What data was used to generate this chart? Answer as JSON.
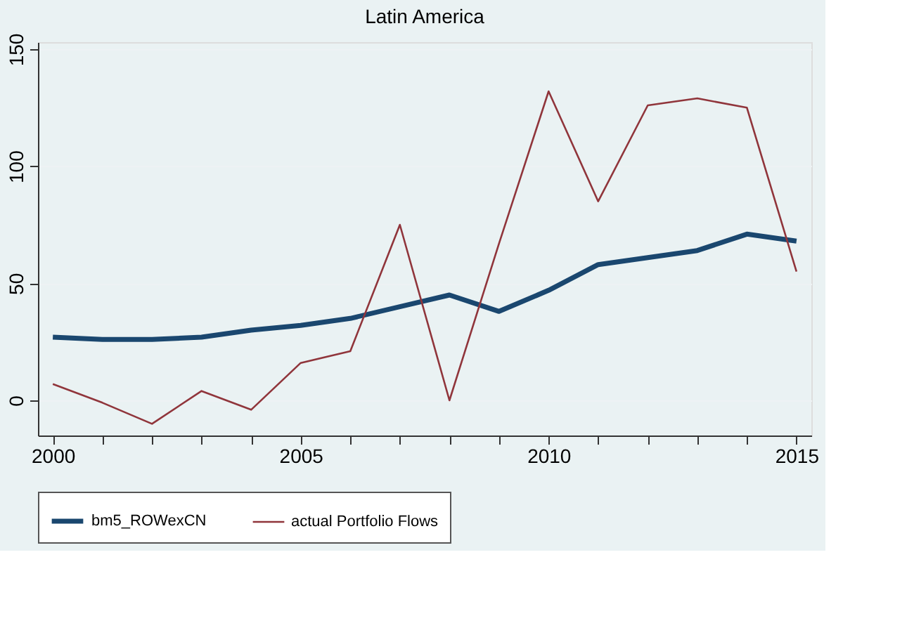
{
  "chart_data": {
    "type": "line",
    "title": "Latin America",
    "x": [
      2000,
      2001,
      2002,
      2003,
      2004,
      2005,
      2006,
      2007,
      2008,
      2009,
      2010,
      2011,
      2012,
      2013,
      2014,
      2015
    ],
    "series": [
      {
        "name": "bm5_ROWexCN",
        "color": "#1a476f",
        "values": [
          27,
          26,
          26,
          27,
          30,
          32,
          35,
          40,
          45,
          38,
          47,
          58,
          61,
          64,
          71,
          68
        ]
      },
      {
        "name": "actual Portfolio Flows",
        "color": "#90353b",
        "values": [
          7,
          -1,
          -10,
          4,
          -4,
          16,
          21,
          75,
          0,
          67,
          132,
          85,
          126,
          129,
          125,
          55
        ]
      }
    ],
    "xlim": [
      1999.7,
      2015.3
    ],
    "xticks": [
      2000,
      {
        "value": 2001,
        "label": null
      },
      {
        "value": 2002,
        "label": null
      },
      {
        "value": 2003,
        "label": null
      },
      {
        "value": 2004,
        "label": null
      },
      2005,
      {
        "value": 2006,
        "label": null
      },
      {
        "value": 2007,
        "label": null
      },
      {
        "value": 2008,
        "label": null
      },
      {
        "value": 2009,
        "label": null
      },
      2010,
      {
        "value": 2011,
        "label": null
      },
      {
        "value": 2012,
        "label": null
      },
      {
        "value": 2013,
        "label": null
      },
      {
        "value": 2014,
        "label": null
      },
      2015
    ],
    "ylim": [
      -15,
      153
    ],
    "yticks": [
      0,
      50,
      100,
      150
    ],
    "grid": "y",
    "legend": "bottom",
    "marker": "none",
    "line_style": "solid"
  }
}
